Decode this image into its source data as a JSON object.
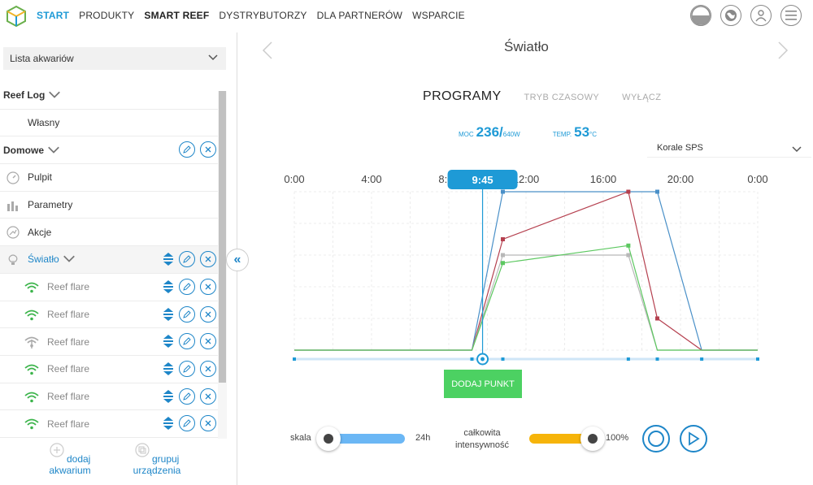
{
  "nav": {
    "items": [
      {
        "label": "START",
        "style": "active"
      },
      {
        "label": "PRODUKTY",
        "style": "normal"
      },
      {
        "label": "SMART REEF",
        "style": "bold"
      },
      {
        "label": "DYSTRYBUTORZY",
        "style": "normal"
      },
      {
        "label": "DLA PARTNERÓW",
        "style": "normal"
      },
      {
        "label": "WSPARCIE",
        "style": "normal"
      }
    ],
    "icons": [
      "display-mode-icon",
      "globe-icon",
      "user-icon",
      "menu-icon"
    ]
  },
  "sidebar": {
    "select_label": "Lista akwariów",
    "groups": {
      "reeflog": {
        "label": "Reef Log",
        "sub": "Własny"
      },
      "domowe": {
        "label": "Domowe"
      }
    },
    "items": [
      {
        "label": "Pulpit",
        "icon": "gauge-icon"
      },
      {
        "label": "Parametry",
        "icon": "bar-chart-icon"
      },
      {
        "label": "Akcje",
        "icon": "actions-icon"
      },
      {
        "label": "Światło",
        "icon": "lightbulb-icon"
      }
    ],
    "devices": [
      {
        "label": "Reef flare",
        "icon": "wifi-icon",
        "status": "online"
      },
      {
        "label": "Reef flare",
        "icon": "wifi-icon",
        "status": "online"
      },
      {
        "label": "Reef flare",
        "icon": "wifi-off-icon",
        "status": "offline"
      },
      {
        "label": "Reef flare",
        "icon": "wifi-icon",
        "status": "online"
      },
      {
        "label": "Reef flare",
        "icon": "wifi-icon",
        "status": "online"
      },
      {
        "label": "Reef flare",
        "icon": "wifi-icon",
        "status": "online"
      }
    ],
    "footer": {
      "add_aquarium": "dodaj akwarium",
      "group_devices": "grupuj urządzenia"
    }
  },
  "main": {
    "title": "Światło",
    "modes": [
      {
        "label": "PROGRAMY",
        "active": true
      },
      {
        "label": "TRYB CZASOWY",
        "active": false
      },
      {
        "label": "WYŁĄCZ",
        "active": false
      }
    ],
    "power": {
      "label": "MOC",
      "value": "236",
      "slash": "/",
      "max": "640W"
    },
    "temp": {
      "label": "TEMP.",
      "value": "53",
      "unit": "°C"
    },
    "profile": "Korale SPS",
    "add_point": "DODAJ PUNKT",
    "scale": {
      "label": "skala",
      "value": "24h",
      "fraction": 0.0
    },
    "intensity": {
      "label_line1": "całkowita",
      "label_line2": "intensywność",
      "value": "100%",
      "fraction": 1.0
    }
  },
  "chart_data": {
    "type": "line",
    "x_ticks": [
      "0:00",
      "4:00",
      "8:00",
      "12:00",
      "16:00",
      "20:00",
      "0:00"
    ],
    "xlim": [
      0,
      24
    ],
    "ylim": [
      0,
      100
    ],
    "grid": true,
    "current_time_label": "9:45",
    "current_time": 9.75,
    "colors": {
      "blue": "#4a90c8",
      "red": "#b5404f",
      "green": "#5cc860",
      "gray": "#b8b8b8",
      "cursor": "#1e9ad6"
    },
    "series": [
      {
        "color": "blue",
        "points": [
          [
            0,
            0
          ],
          [
            9.2,
            0
          ],
          [
            10.8,
            100
          ],
          [
            18.8,
            100
          ],
          [
            21.1,
            0
          ],
          [
            24,
            0
          ]
        ]
      },
      {
        "color": "red",
        "points": [
          [
            0,
            0
          ],
          [
            9.2,
            0
          ],
          [
            10.8,
            70
          ],
          [
            17.3,
            100
          ],
          [
            18.8,
            20
          ],
          [
            21.1,
            0
          ],
          [
            24,
            0
          ]
        ]
      },
      {
        "color": "gray",
        "points": [
          [
            0,
            0
          ],
          [
            9.2,
            0
          ],
          [
            10.8,
            60
          ],
          [
            17.3,
            60
          ],
          [
            18.8,
            0
          ],
          [
            24,
            0
          ]
        ]
      },
      {
        "color": "green",
        "points": [
          [
            0,
            0
          ],
          [
            9.2,
            0
          ],
          [
            10.8,
            55
          ],
          [
            17.3,
            66
          ],
          [
            18.8,
            0
          ],
          [
            24,
            0
          ]
        ]
      }
    ],
    "timeline_points": [
      0,
      9.2,
      9.75,
      10.8,
      17.3,
      18.8,
      21.1,
      24
    ]
  }
}
